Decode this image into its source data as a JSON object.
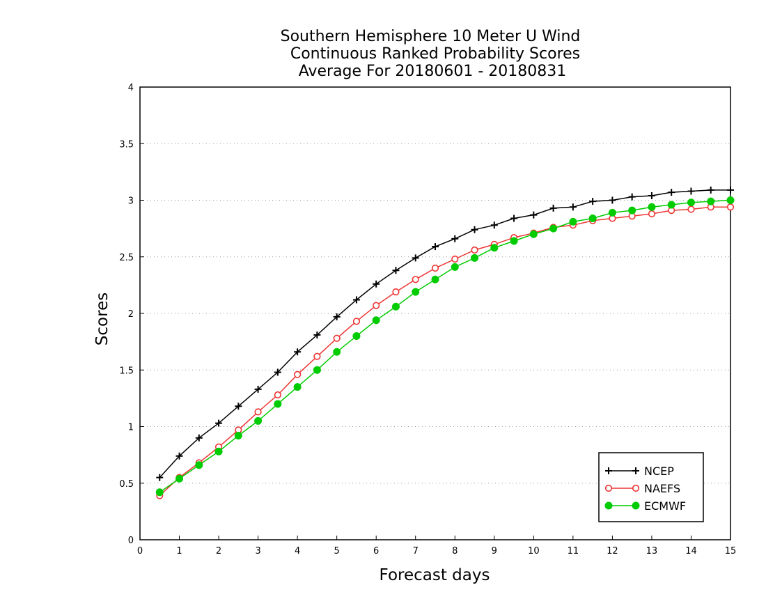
{
  "chart_data": {
    "type": "line",
    "title_lines": [
      "Southern Hemisphere 10 Meter U Wind",
      "Continuous Ranked Probability Scores",
      "Average For 20180601 - 20180831"
    ],
    "xlabel": "Forecast days",
    "ylabel": "Scores",
    "xlim": [
      0,
      15
    ],
    "ylim": [
      0,
      4
    ],
    "xticks": [
      0,
      1,
      2,
      3,
      4,
      5,
      6,
      7,
      8,
      9,
      10,
      11,
      12,
      13,
      14,
      15
    ],
    "yticks": [
      0,
      0.5,
      1,
      1.5,
      2,
      2.5,
      3,
      3.5,
      4
    ],
    "ytick_labels": [
      "0",
      "0.5",
      "1",
      "1.5",
      "2",
      "2.5",
      "3",
      "3.5",
      "4"
    ],
    "grid": "horizontal dotted",
    "legend_position": "bottom-right",
    "x": [
      0.5,
      1,
      1.5,
      2,
      2.5,
      3,
      3.5,
      4,
      4.5,
      5,
      5.5,
      6,
      6.5,
      7,
      7.5,
      8,
      8.5,
      9,
      9.5,
      10,
      10.5,
      11,
      11.5,
      12,
      12.5,
      13,
      13.5,
      14,
      14.5,
      15
    ],
    "series": [
      {
        "name": "NCEP",
        "color": "#000000",
        "marker": "plus",
        "values": [
          0.55,
          0.74,
          0.9,
          1.03,
          1.18,
          1.33,
          1.48,
          1.66,
          1.81,
          1.97,
          2.12,
          2.26,
          2.38,
          2.49,
          2.59,
          2.66,
          2.74,
          2.78,
          2.84,
          2.87,
          2.93,
          2.94,
          2.99,
          3.0,
          3.03,
          3.04,
          3.07,
          3.08,
          3.09,
          3.09
        ]
      },
      {
        "name": "NAEFS",
        "color": "#ee3333",
        "marker": "open-circle",
        "values": [
          0.39,
          0.55,
          0.68,
          0.82,
          0.97,
          1.13,
          1.28,
          1.46,
          1.62,
          1.78,
          1.93,
          2.07,
          2.19,
          2.3,
          2.4,
          2.48,
          2.56,
          2.61,
          2.67,
          2.71,
          2.76,
          2.78,
          2.82,
          2.84,
          2.86,
          2.88,
          2.91,
          2.92,
          2.94,
          2.94
        ]
      },
      {
        "name": "ECMWF",
        "color": "#00cc00",
        "marker": "filled-circle",
        "values": [
          0.42,
          0.54,
          0.66,
          0.78,
          0.92,
          1.05,
          1.2,
          1.35,
          1.5,
          1.66,
          1.8,
          1.94,
          2.06,
          2.19,
          2.3,
          2.41,
          2.49,
          2.58,
          2.64,
          2.7,
          2.75,
          2.81,
          2.84,
          2.89,
          2.91,
          2.94,
          2.96,
          2.98,
          2.99,
          3.0
        ]
      }
    ]
  }
}
